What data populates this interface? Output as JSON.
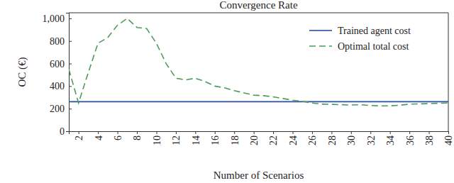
{
  "chart_data": {
    "type": "line",
    "title": "Convergence Rate",
    "x_label": "Number of Scenarios",
    "y_label": "OC (€)",
    "x": [
      1,
      2,
      3,
      4,
      5,
      6,
      7,
      8,
      9,
      10,
      11,
      12,
      13,
      14,
      15,
      16,
      17,
      18,
      19,
      20,
      21,
      22,
      23,
      24,
      25,
      26,
      27,
      28,
      29,
      30,
      31,
      32,
      33,
      34,
      35,
      36,
      37,
      38,
      39,
      40
    ],
    "series": [
      {
        "name": "Trained agent cost",
        "color": "#2b4fa0",
        "line_style": "solid",
        "values": [
          262,
          262,
          262,
          262,
          262,
          262,
          262,
          262,
          262,
          262,
          262,
          262,
          262,
          262,
          262,
          262,
          262,
          262,
          262,
          262,
          262,
          262,
          262,
          262,
          262,
          262,
          262,
          262,
          262,
          262,
          262,
          262,
          262,
          262,
          262,
          262,
          262,
          262,
          262,
          262
        ]
      },
      {
        "name": "Optimal total cost",
        "color": "#4f9a5c",
        "line_style": "dashed",
        "values": [
          550,
          250,
          520,
          780,
          830,
          940,
          1000,
          920,
          910,
          780,
          600,
          470,
          455,
          470,
          440,
          400,
          385,
          360,
          340,
          320,
          315,
          305,
          290,
          275,
          265,
          250,
          240,
          238,
          235,
          232,
          235,
          228,
          225,
          225,
          230,
          240,
          242,
          245,
          248,
          250
        ]
      }
    ],
    "xlim": [
      1,
      40
    ],
    "xticks": [
      2,
      4,
      6,
      8,
      10,
      12,
      14,
      16,
      18,
      20,
      22,
      24,
      26,
      28,
      30,
      32,
      34,
      36,
      38,
      40
    ],
    "ylim": [
      0,
      1050
    ],
    "yticks": [
      0,
      200,
      400,
      600,
      800,
      {
        "value": 1000,
        "label": "1,000"
      }
    ],
    "grid": false,
    "legend": "upper right"
  }
}
